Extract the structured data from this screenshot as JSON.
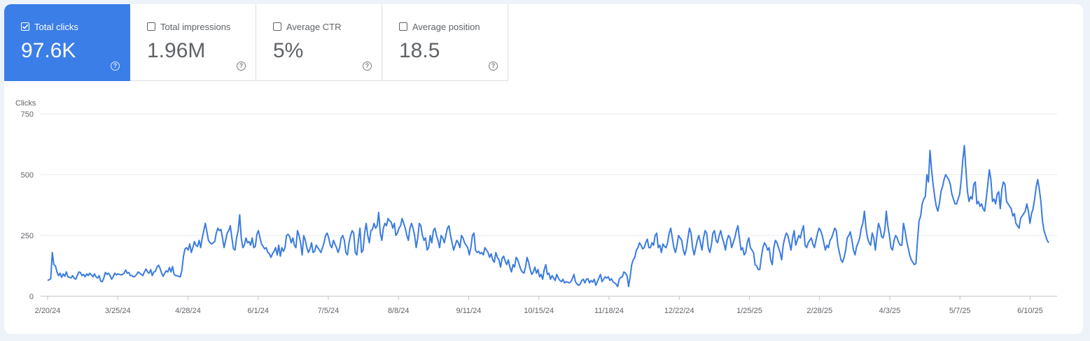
{
  "metrics": [
    {
      "label": "Total clicks",
      "value": "97.6K",
      "checked": true
    },
    {
      "label": "Total impressions",
      "value": "1.96M",
      "checked": false
    },
    {
      "label": "Average CTR",
      "value": "5%",
      "checked": false
    },
    {
      "label": "Average position",
      "value": "18.5",
      "checked": false
    }
  ],
  "colors": {
    "accent": "#3b7ee8",
    "line": "#3a7be0"
  },
  "chart_data": {
    "type": "line",
    "title": "",
    "ylabel": "Clicks",
    "xlabel": "",
    "ylim": [
      0,
      750
    ],
    "grid": true,
    "y_ticks": [
      "0",
      "250",
      "500",
      "750"
    ],
    "x_ticks": [
      "2/20/24",
      "3/25/24",
      "4/28/24",
      "6/1/24",
      "7/5/24",
      "8/8/24",
      "9/11/24",
      "10/15/24",
      "11/18/24",
      "12/22/24",
      "1/25/25",
      "2/28/25",
      "4/3/25",
      "5/7/25",
      "6/10/25"
    ],
    "x_range": [
      "2/20/24",
      "6/19/25"
    ],
    "series": [
      {
        "values": [
          65,
          68,
          72,
          180,
          130,
          125,
          100,
          85,
          95,
          78,
          92,
          82,
          100,
          80,
          78,
          75,
          85,
          75,
          70,
          85,
          100,
          98,
          85,
          90,
          80,
          92,
          85,
          95,
          88,
          80,
          92,
          80,
          75,
          85,
          62,
          60,
          75,
          98,
          90,
          95,
          85,
          70,
          80,
          95,
          88,
          92,
          90,
          88,
          90,
          95,
          108,
          95,
          98,
          85,
          85,
          80,
          82,
          90,
          100,
          95,
          90,
          85,
          100,
          112,
          100,
          95,
          110,
          85,
          100,
          102,
          120,
          128,
          115,
          95,
          82,
          95,
          105,
          100,
          118,
          100,
          122,
          90,
          85,
          84,
          82,
          80,
          108,
          165,
          195,
          200,
          190,
          215,
          180,
          200,
          225,
          210,
          205,
          230,
          200,
          240,
          270,
          300,
          265,
          230,
          220,
          215,
          220,
          225,
          260,
          280,
          270,
          275,
          240,
          200,
          230,
          260,
          270,
          290,
          240,
          195,
          190,
          240,
          270,
          335,
          240,
          200,
          210,
          240,
          220,
          225,
          210,
          240,
          200,
          205,
          255,
          270,
          240,
          215,
          205,
          195,
          200,
          180,
          175,
          160,
          175,
          185,
          200,
          170,
          210,
          165,
          200,
          185,
          200,
          250,
          255,
          245,
          220,
          240,
          210,
          200,
          270,
          250,
          220,
          170,
          250,
          230,
          200,
          180,
          195,
          220,
          180,
          185,
          210,
          200,
          190,
          180,
          200,
          220,
          250,
          260,
          240,
          210,
          200,
          230,
          215,
          200,
          180,
          200,
          240,
          250,
          230,
          180,
          170,
          220,
          250,
          270,
          260,
          180,
          170,
          230,
          280,
          180,
          190,
          260,
          300,
          250,
          220,
          270,
          275,
          300,
          280,
          290,
          345,
          260,
          230,
          280,
          300,
          290,
          320,
          310,
          305,
          280,
          300,
          250,
          260,
          280,
          290,
          320,
          300,
          280,
          250,
          230,
          280,
          300,
          280,
          250,
          200,
          240,
          300,
          290,
          250,
          230,
          240,
          190,
          200,
          250,
          220,
          270,
          280,
          250,
          230,
          200,
          250,
          240,
          220,
          250,
          280,
          290,
          250,
          220,
          190,
          210,
          230,
          220,
          200,
          250,
          240,
          220,
          210,
          200,
          170,
          200,
          250,
          260,
          190,
          180,
          185,
          175,
          180,
          170,
          200,
          190,
          180,
          160,
          175,
          150,
          140,
          180,
          160,
          150,
          120,
          155,
          165,
          145,
          130,
          150,
          120,
          100,
          130,
          120,
          160,
          150,
          130,
          110,
          100,
          95,
          120,
          160,
          140,
          110,
          90,
          100,
          120,
          95,
          110,
          80,
          90,
          70,
          110,
          130,
          90,
          95,
          70,
          85,
          75,
          65,
          90,
          75,
          65,
          60,
          70,
          55,
          60,
          58,
          55,
          60,
          72,
          90,
          60,
          50,
          45,
          50,
          65,
          70,
          55,
          70,
          72,
          55,
          65,
          58,
          70,
          45,
          60,
          75,
          90,
          60,
          70,
          80,
          75,
          80,
          65,
          72,
          60,
          55,
          50,
          40,
          70,
          78,
          80,
          100,
          95,
          85,
          40,
          80,
          130,
          150,
          160,
          190,
          200,
          220,
          210,
          195,
          200,
          220,
          235,
          200,
          200,
          220,
          210,
          250,
          260,
          200,
          210,
          180,
          215,
          205,
          200,
          220,
          260,
          280,
          240,
          200,
          180,
          210,
          250,
          240,
          230,
          190,
          170,
          195,
          240,
          280,
          260,
          200,
          170,
          200,
          230,
          250,
          220,
          190,
          240,
          270,
          260,
          200,
          180,
          210,
          260,
          270,
          230,
          220,
          250,
          270,
          240,
          220,
          190,
          230,
          250,
          240,
          200,
          220,
          240,
          270,
          290,
          240,
          190,
          200,
          170,
          180,
          220,
          240,
          200,
          190,
          180,
          130,
          125,
          110,
          110,
          160,
          200,
          220,
          210,
          190,
          200,
          150,
          130,
          200,
          230,
          220,
          200,
          180,
          150,
          210,
          240,
          260,
          250,
          220,
          190,
          240,
          270,
          210,
          230,
          250,
          240,
          270,
          290,
          210,
          200,
          220,
          230,
          240,
          215,
          200,
          230,
          260,
          280,
          270,
          250,
          220,
          190,
          210,
          200,
          230,
          240,
          260,
          280,
          270,
          210,
          180,
          150,
          140,
          160,
          190,
          240,
          250,
          265,
          230,
          190,
          170,
          205,
          220,
          240,
          280,
          300,
          350,
          280,
          240,
          220,
          210,
          260,
          240,
          190,
          250,
          300,
          280,
          245,
          240,
          270,
          350,
          290,
          250,
          200,
          190,
          230,
          250,
          240,
          220,
          210,
          210,
          300,
          270,
          230,
          200,
          170,
          150,
          140,
          130,
          135,
          230,
          310,
          330,
          380,
          400,
          410,
          500,
          470,
          600,
          520,
          460,
          410,
          370,
          350,
          380,
          430,
          450,
          480,
          500,
          490,
          480,
          460,
          420,
          400,
          380,
          380,
          400,
          420,
          480,
          560,
          620,
          520,
          430,
          390,
          410,
          400,
          460,
          470,
          380,
          390,
          370,
          380,
          360,
          350,
          400,
          460,
          520,
          480,
          390,
          400,
          380,
          420,
          430,
          360,
          440,
          470,
          460,
          390,
          380,
          370,
          360,
          330,
          340,
          300,
          290,
          280,
          320,
          330,
          340,
          350,
          380,
          350,
          300,
          340,
          360,
          400,
          450,
          480,
          440,
          390,
          310,
          270,
          250,
          230,
          220
        ]
      }
    ]
  }
}
